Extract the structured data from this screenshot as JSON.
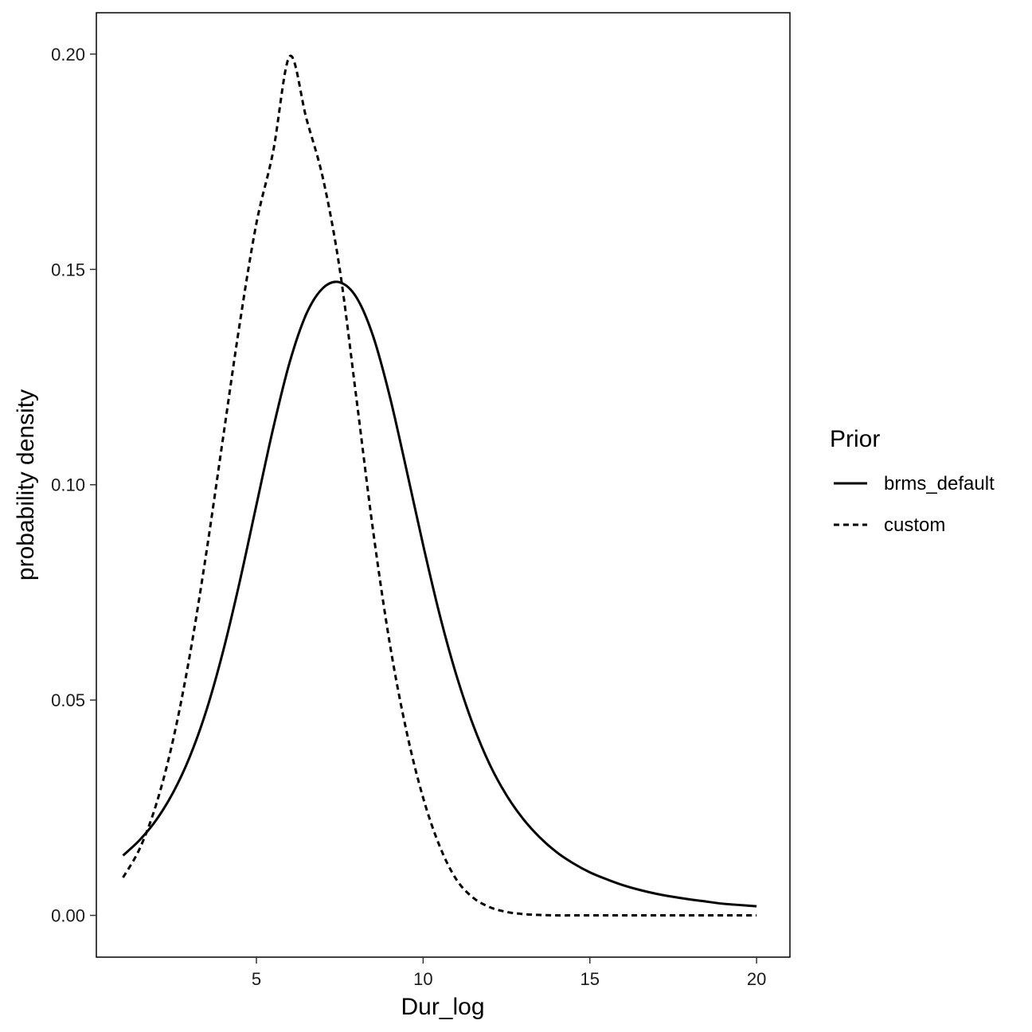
{
  "chart_data": {
    "type": "line",
    "xlabel": "Dur_log",
    "ylabel": "probability density",
    "xlim": [
      0.2,
      21.0
    ],
    "ylim": [
      -0.0097,
      0.2096
    ],
    "x_ticks": [
      5,
      10,
      15,
      20
    ],
    "y_ticks": [
      0.0,
      0.05,
      0.1,
      0.15,
      0.2
    ],
    "x_tick_labels": [
      "5",
      "10",
      "15",
      "20"
    ],
    "y_tick_labels": [
      "0.00",
      "0.05",
      "0.10",
      "0.15",
      "0.20"
    ],
    "grid": false,
    "legend": {
      "title": "Prior",
      "position": "right",
      "entries": [
        "brms_default",
        "custom"
      ]
    },
    "series": [
      {
        "name": "brms_default",
        "line_style": "solid",
        "color": "#000000",
        "x": [
          1,
          1.5,
          2,
          2.5,
          3,
          3.5,
          4,
          4.5,
          5,
          5.5,
          6,
          6.5,
          7,
          7.5,
          8,
          8.5,
          9,
          9.5,
          10,
          10.5,
          11,
          11.5,
          12,
          12.5,
          13,
          13.5,
          14,
          14.5,
          15,
          15.5,
          16,
          16.5,
          17,
          17.5,
          18,
          18.5,
          19,
          19.5,
          20
        ],
        "y": [
          0.0139,
          0.0175,
          0.0222,
          0.0285,
          0.0368,
          0.0476,
          0.0613,
          0.0775,
          0.0953,
          0.113,
          0.1285,
          0.1397,
          0.1457,
          0.147,
          0.1435,
          0.1345,
          0.1205,
          0.1035,
          0.086,
          0.0697,
          0.0557,
          0.0442,
          0.035,
          0.0279,
          0.0224,
          0.0181,
          0.0147,
          0.0121,
          0.01,
          0.0084,
          0.007,
          0.0059,
          0.005,
          0.0043,
          0.0037,
          0.0032,
          0.0027,
          0.0024,
          0.0021
        ]
      },
      {
        "name": "custom",
        "line_style": "dashed",
        "color": "#000000",
        "x": [
          1,
          1.5,
          2,
          2.5,
          3,
          3.5,
          4,
          4.5,
          5,
          5.5,
          6,
          6.5,
          7,
          7.5,
          8,
          8.5,
          9,
          9.5,
          10,
          10.5,
          11,
          11.5,
          12,
          12.5,
          13,
          13.5,
          14,
          14.5,
          15,
          15.5,
          16,
          16.5,
          17,
          17.5,
          18,
          18.5,
          19,
          19.5,
          20
        ],
        "y": [
          0.0088,
          0.0155,
          0.0259,
          0.0407,
          0.0603,
          0.0843,
          0.1109,
          0.1374,
          0.1607,
          0.1773,
          0.1995,
          0.185,
          0.171,
          0.15,
          0.12,
          0.0893,
          0.0631,
          0.0428,
          0.0273,
          0.016,
          0.0083,
          0.0041,
          0.0019,
          0.0008,
          0.0003,
          0.0001,
          0.0,
          0.0,
          0.0,
          0.0,
          0.0,
          0.0,
          0.0,
          0.0,
          0.0,
          0.0,
          0.0,
          0.0,
          0.0
        ]
      }
    ]
  }
}
